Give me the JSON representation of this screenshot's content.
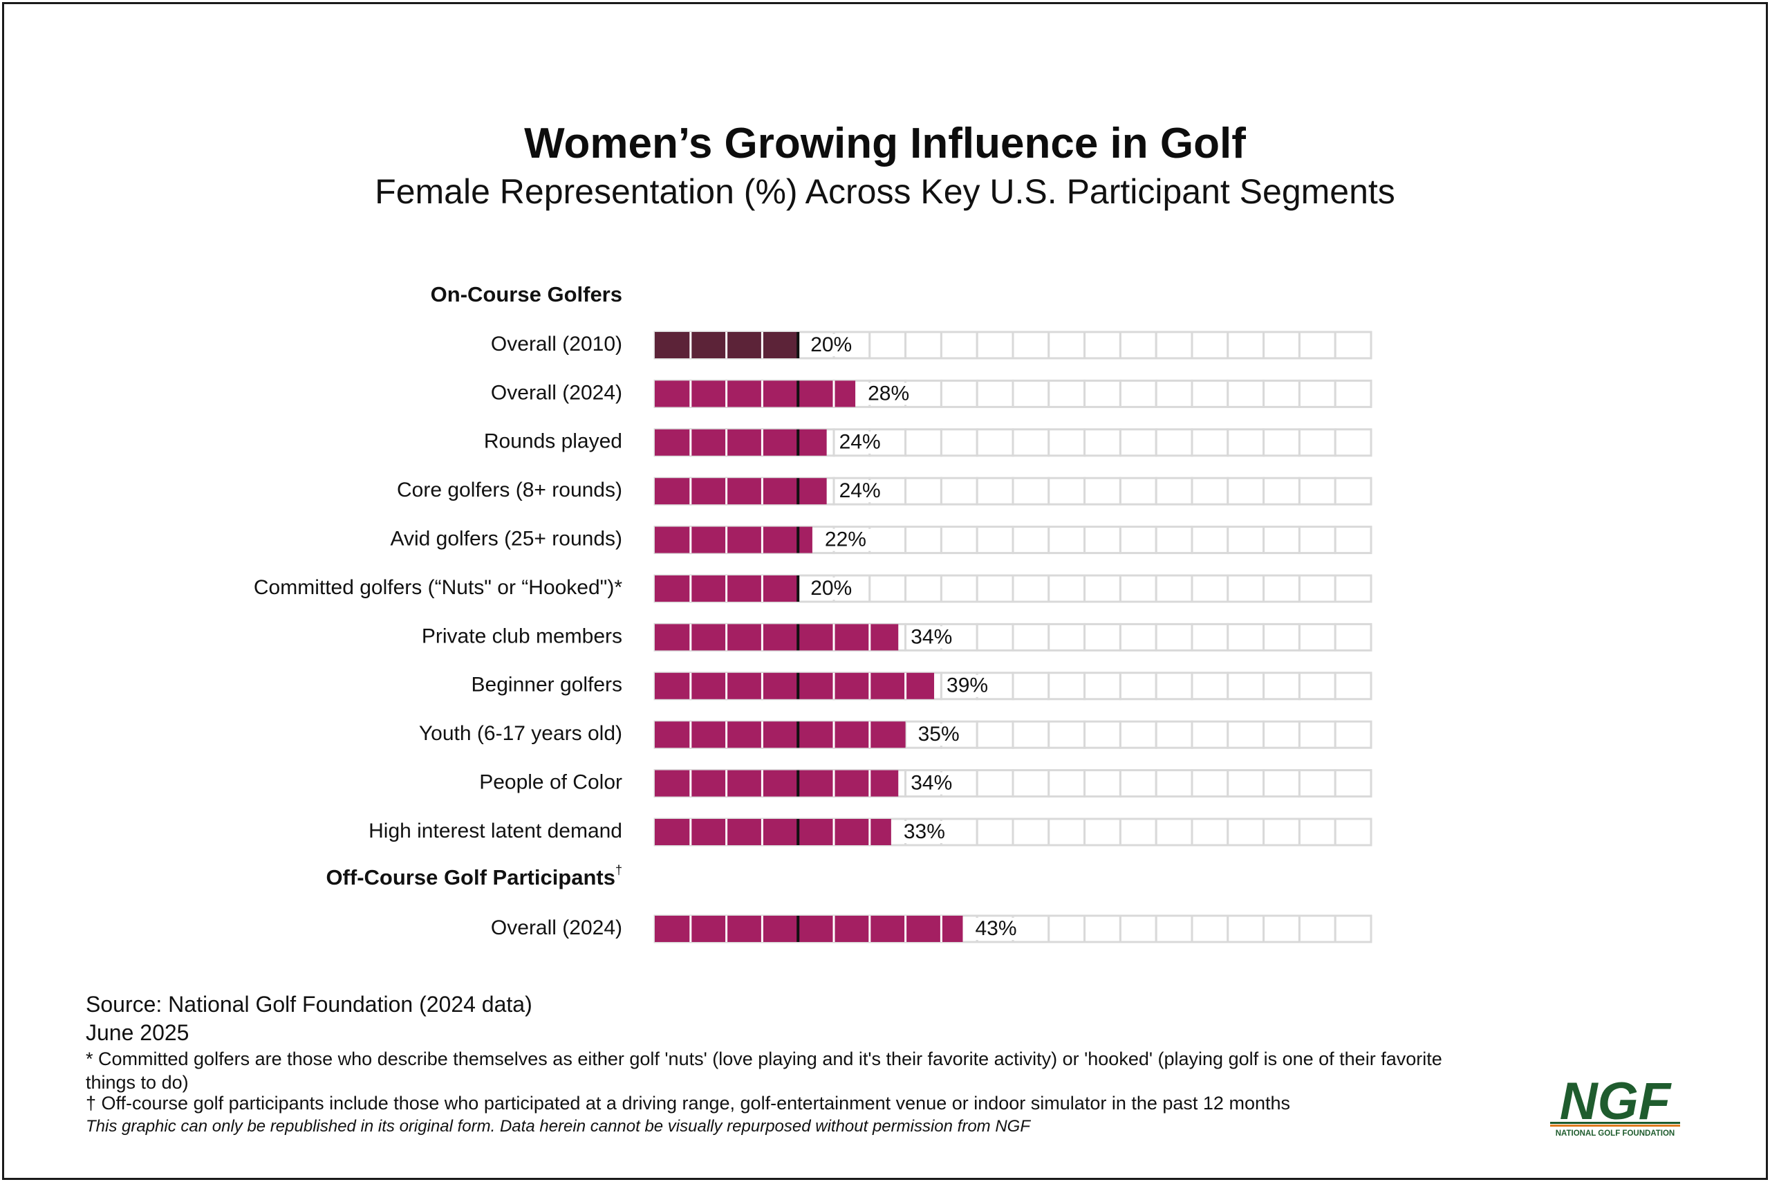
{
  "title": "Women’s Growing Influence in Golf",
  "subtitle": "Female Representation (%) Across Key U.S. Participant Segments",
  "colors": {
    "bar_2010": "#5c2338",
    "bar_main": "#a41f62",
    "cell_border": "#d9d9d9",
    "marker": "#111111",
    "logo_green": "#1f5c2e",
    "logo_stripe_orange": "#e07b1f"
  },
  "chart_data": {
    "type": "bar",
    "orientation": "horizontal",
    "xlim": [
      0,
      100
    ],
    "unit": "%",
    "segment_step": 5,
    "marker_value": 20,
    "groups": [
      {
        "name": "On-Course Golfers",
        "superscript": "",
        "rows": [
          {
            "label": "Overall (2010)",
            "value": 20,
            "value_label": "20%",
            "highlight_2010": true
          },
          {
            "label": "Overall (2024)",
            "value": 28,
            "value_label": "28%"
          },
          {
            "label": "Rounds played",
            "value": 24,
            "value_label": "24%"
          },
          {
            "label": "Core golfers (8+ rounds)",
            "value": 24,
            "value_label": "24%"
          },
          {
            "label": "Avid golfers (25+ rounds)",
            "value": 22,
            "value_label": "22%"
          },
          {
            "label": "Committed golfers (“Nuts\" or “Hooked\")*",
            "value": 20,
            "value_label": "20%"
          },
          {
            "label": "Private club members",
            "value": 34,
            "value_label": "34%"
          },
          {
            "label": "Beginner golfers",
            "value": 39,
            "value_label": "39%"
          },
          {
            "label": "Youth (6-17 years old)",
            "value": 35,
            "value_label": "35%"
          },
          {
            "label": "People of Color",
            "value": 34,
            "value_label": "34%"
          },
          {
            "label": "High interest latent demand",
            "value": 33,
            "value_label": "33%"
          }
        ]
      },
      {
        "name": "Off-Course Golf Participants",
        "superscript": "†",
        "rows": [
          {
            "label": "Overall (2024)",
            "value": 43,
            "value_label": "43%"
          }
        ]
      }
    ]
  },
  "footer": {
    "source": "Source: National Golf Foundation (2024 data)",
    "date": "June 2025",
    "note_committed": "* Committed golfers are those who describe themselves as either golf 'nuts' (love playing and it's their favorite activity) or 'hooked' (playing golf is one of their favorite things to do)",
    "note_offcourse": "† Off-course golf participants include those who participated at a driving range, golf-entertainment venue or indoor simulator in the past 12 months",
    "republish": "This graphic can only be republished in its original form. Data herein cannot be visually repurposed without permission from NGF"
  },
  "logo": {
    "wordmark": "NGF",
    "tagline": "NATIONAL GOLF FOUNDATION"
  }
}
